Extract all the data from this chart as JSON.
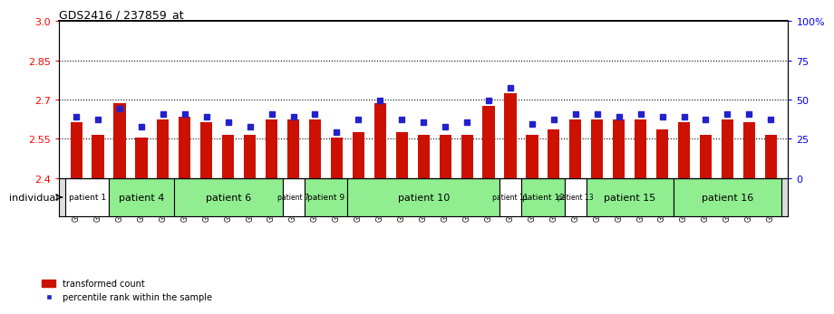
{
  "title": "GDS2416 / 237859_at",
  "samples": [
    "GSM135233",
    "GSM135234",
    "GSM135260",
    "GSM135232",
    "GSM135235",
    "GSM135236",
    "GSM135231",
    "GSM135242",
    "GSM135243",
    "GSM135251",
    "GSM135252",
    "GSM135244",
    "GSM135259",
    "GSM135254",
    "GSM135255",
    "GSM135261",
    "GSM135229",
    "GSM135230",
    "GSM135245",
    "GSM135246",
    "GSM135258",
    "GSM135247",
    "GSM135250",
    "GSM135237",
    "GSM135238",
    "GSM135239",
    "GSM135256",
    "GSM135257",
    "GSM135240",
    "GSM135248",
    "GSM135253",
    "GSM135241",
    "GSM135249"
  ],
  "red_values": [
    2.615,
    2.565,
    2.685,
    2.555,
    2.625,
    2.635,
    2.615,
    2.565,
    2.565,
    2.625,
    2.625,
    2.625,
    2.555,
    2.575,
    2.685,
    2.575,
    2.565,
    2.565,
    2.565,
    2.675,
    2.725,
    2.565,
    2.585,
    2.625,
    2.625,
    2.625,
    2.625,
    2.585,
    2.615,
    2.565,
    2.625,
    2.615,
    2.565
  ],
  "blue_values": [
    2.635,
    2.625,
    2.665,
    2.595,
    2.645,
    2.645,
    2.635,
    2.615,
    2.595,
    2.645,
    2.635,
    2.645,
    2.575,
    2.625,
    2.695,
    2.625,
    2.615,
    2.595,
    2.615,
    2.695,
    2.745,
    2.605,
    2.625,
    2.645,
    2.645,
    2.635,
    2.645,
    2.635,
    2.635,
    2.625,
    2.645,
    2.645,
    2.625
  ],
  "patients": [
    {
      "label": "patient 1",
      "start": 0,
      "end": 2,
      "color": "#ffffff"
    },
    {
      "label": "patient 4",
      "start": 2,
      "end": 5,
      "color": "#90ee90"
    },
    {
      "label": "patient 6",
      "start": 5,
      "end": 10,
      "color": "#90ee90"
    },
    {
      "label": "patient 7",
      "start": 10,
      "end": 11,
      "color": "#ffffff"
    },
    {
      "label": "patient 9",
      "start": 11,
      "end": 13,
      "color": "#90ee90"
    },
    {
      "label": "patient 10",
      "start": 13,
      "end": 20,
      "color": "#90ee90"
    },
    {
      "label": "patient 11",
      "start": 20,
      "end": 21,
      "color": "#ffffff"
    },
    {
      "label": "patient 12",
      "start": 21,
      "end": 23,
      "color": "#90ee90"
    },
    {
      "label": "patient 13",
      "start": 23,
      "end": 24,
      "color": "#ffffff"
    },
    {
      "label": "patient 15",
      "start": 24,
      "end": 28,
      "color": "#90ee90"
    },
    {
      "label": "patient 16",
      "start": 28,
      "end": 33,
      "color": "#90ee90"
    }
  ],
  "ymin": 2.4,
  "ymax": 3.0,
  "yticks_left": [
    2.4,
    2.55,
    2.7,
    2.85,
    3.0
  ],
  "yticks_right_vals": [
    0,
    25,
    50,
    75,
    100
  ],
  "yticks_right_labels": [
    "0",
    "25",
    "50",
    "75",
    "100%"
  ],
  "dotted_lines": [
    2.55,
    2.7,
    2.85
  ],
  "bar_color": "#cc1100",
  "blue_color": "#2222cc",
  "bar_width": 0.55,
  "legend_red": "transformed count",
  "legend_blue": "percentile rank within the sample",
  "individual_label": "individual"
}
